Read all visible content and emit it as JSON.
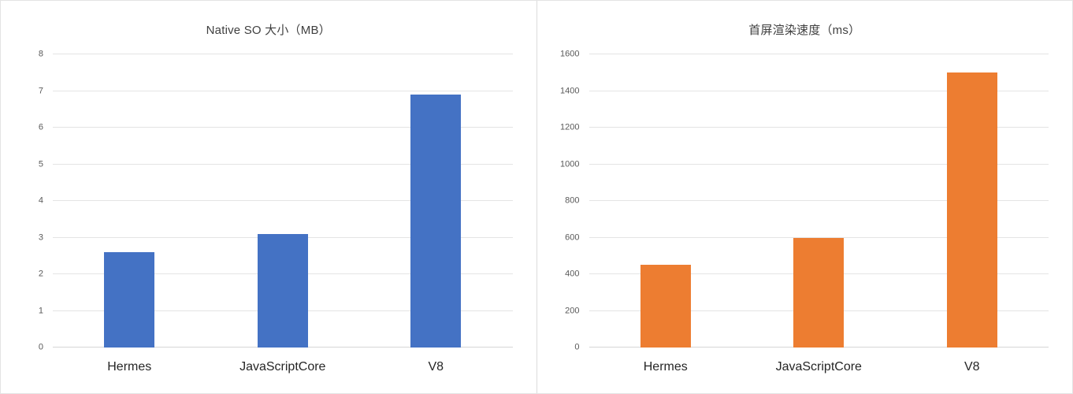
{
  "page": {
    "background": "#ffffff",
    "divider_color": "#dcdcdc"
  },
  "chart_data": [
    {
      "type": "bar",
      "title": "Native SO 大小（MB）",
      "categories": [
        "Hermes",
        "JavaScriptCore",
        "V8"
      ],
      "values": [
        2.6,
        3.1,
        6.9
      ],
      "xlabel": "",
      "ylabel": "",
      "ylim": [
        0,
        8
      ],
      "ytick_step": 1,
      "bar_color": "#4472C4",
      "grid": true,
      "legend_position": "none"
    },
    {
      "type": "bar",
      "title": "首屏渲染速度（ms）",
      "categories": [
        "Hermes",
        "JavaScriptCore",
        "V8"
      ],
      "values": [
        450,
        600,
        1500
      ],
      "xlabel": "",
      "ylabel": "",
      "ylim": [
        0,
        1600
      ],
      "ytick_step": 200,
      "bar_color": "#ED7D31",
      "grid": true,
      "legend_position": "none"
    }
  ]
}
